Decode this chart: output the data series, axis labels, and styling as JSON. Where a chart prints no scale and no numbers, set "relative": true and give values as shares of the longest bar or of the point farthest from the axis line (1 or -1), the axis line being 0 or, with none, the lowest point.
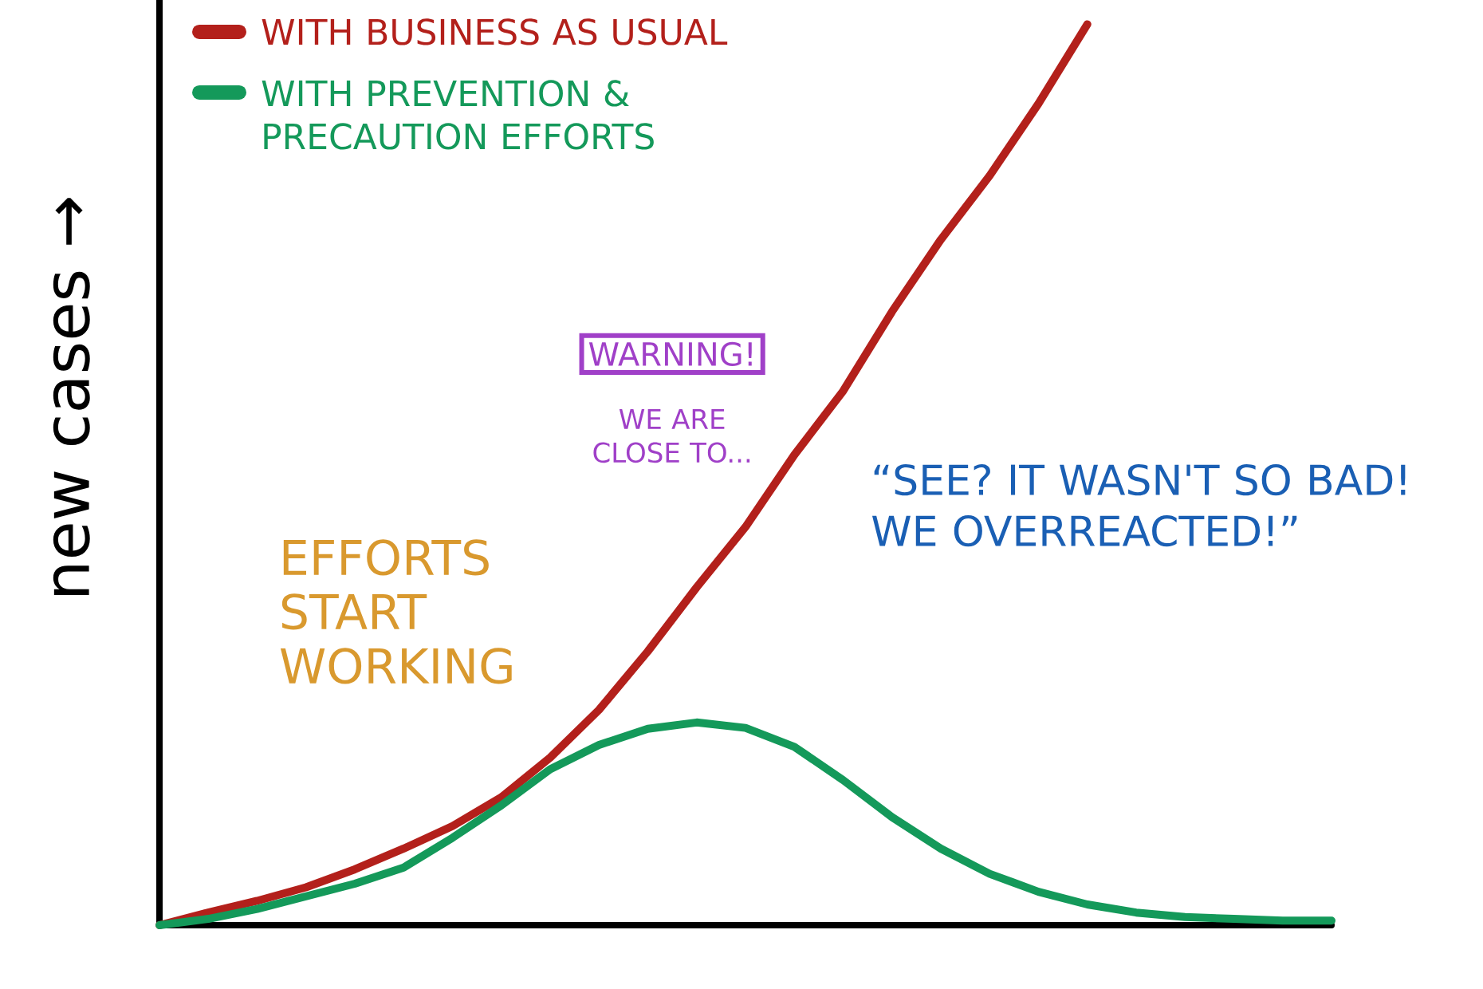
{
  "chart_data": {
    "type": "line",
    "relative": true,
    "ylabel": "new cases →",
    "legend": "top left",
    "categories": [
      null,
      null,
      null,
      null,
      null,
      null,
      null,
      null,
      null,
      null,
      null,
      null,
      null,
      null,
      null,
      null,
      null,
      null,
      null,
      null,
      null,
      null,
      null,
      null,
      null
    ],
    "series": [
      {
        "name": "WITH BUSINESS AS USUAL",
        "color": "#b3201b",
        "values": [
          0,
          0.014,
          0.027,
          0.042,
          0.062,
          0.085,
          0.11,
          0.142,
          0.186,
          0.239,
          0.304,
          0.375,
          0.442,
          0.522,
          0.593,
          0.681,
          0.761,
          0.832,
          0.912,
          1,
          null,
          null,
          null,
          null,
          null
        ]
      },
      {
        "name": "WITH PREVENTION & PRECAUTION EFFORTS",
        "color": "#14995a",
        "values": [
          0,
          0.007,
          0.018,
          0.032,
          0.046,
          0.064,
          0.097,
          0.133,
          0.173,
          0.2,
          0.218,
          0.225,
          0.219,
          0.198,
          0.161,
          0.12,
          0.085,
          0.057,
          0.037,
          0.023,
          0.014,
          0.009,
          0.007,
          0.005,
          0.005
        ]
      }
    ],
    "annotations": [
      "EFFORTS START WORKING",
      "WARNING!",
      "WE ARE CLOSE TO...",
      "“SEE? IT WASN'T SO BAD! WE OVERREACTED!”"
    ]
  }
}
